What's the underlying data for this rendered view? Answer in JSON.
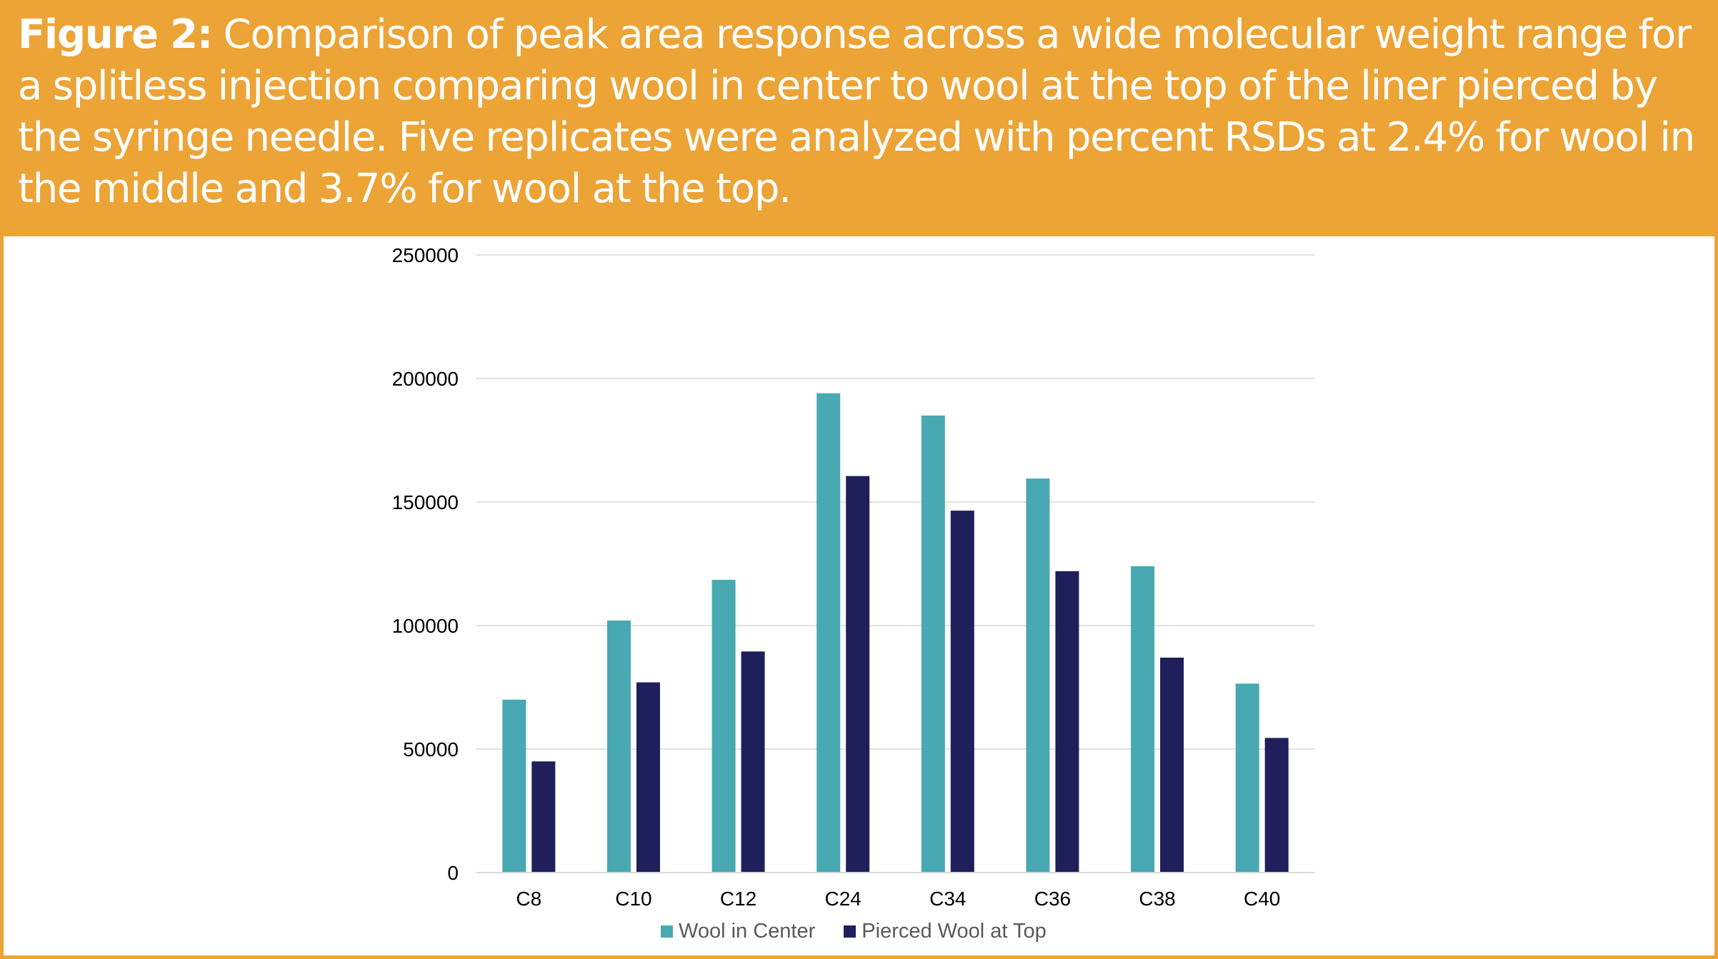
{
  "caption": {
    "label": "Figure 2:",
    "text": " Comparison of peak area response across a wide molecular weight range for a splitless injection comparing wool in center to wool at the top of the liner pierced by the syringe needle. Five replicates were analyzed with percent RSDs at 2.4% for wool in the middle and 3.7% for wool at the top."
  },
  "colors": {
    "band": "#eca437",
    "series_1": "#48a9b2",
    "series_2": "#1f1f5b",
    "gridline": "#d9d9d9",
    "axis_text": "#000000",
    "legend_text": "#595959"
  },
  "chart_data": {
    "type": "bar",
    "title": "",
    "xlabel": "",
    "ylabel": "",
    "categories": [
      "C8",
      "C10",
      "C12",
      "C24",
      "C34",
      "C36",
      "C38",
      "C40"
    ],
    "series": [
      {
        "name": "Wool in Center",
        "values": [
          70000,
          102000,
          118500,
          194000,
          185000,
          159500,
          124000,
          76500
        ]
      },
      {
        "name": "Pierced Wool at Top",
        "values": [
          45000,
          77000,
          89500,
          160500,
          146500,
          122000,
          87000,
          54500
        ]
      }
    ],
    "ylim": [
      0,
      250000
    ],
    "yticks": [
      "0",
      "50000",
      "100000",
      "150000",
      "200000",
      "250000"
    ],
    "grid": true,
    "legend_position": "bottom"
  }
}
